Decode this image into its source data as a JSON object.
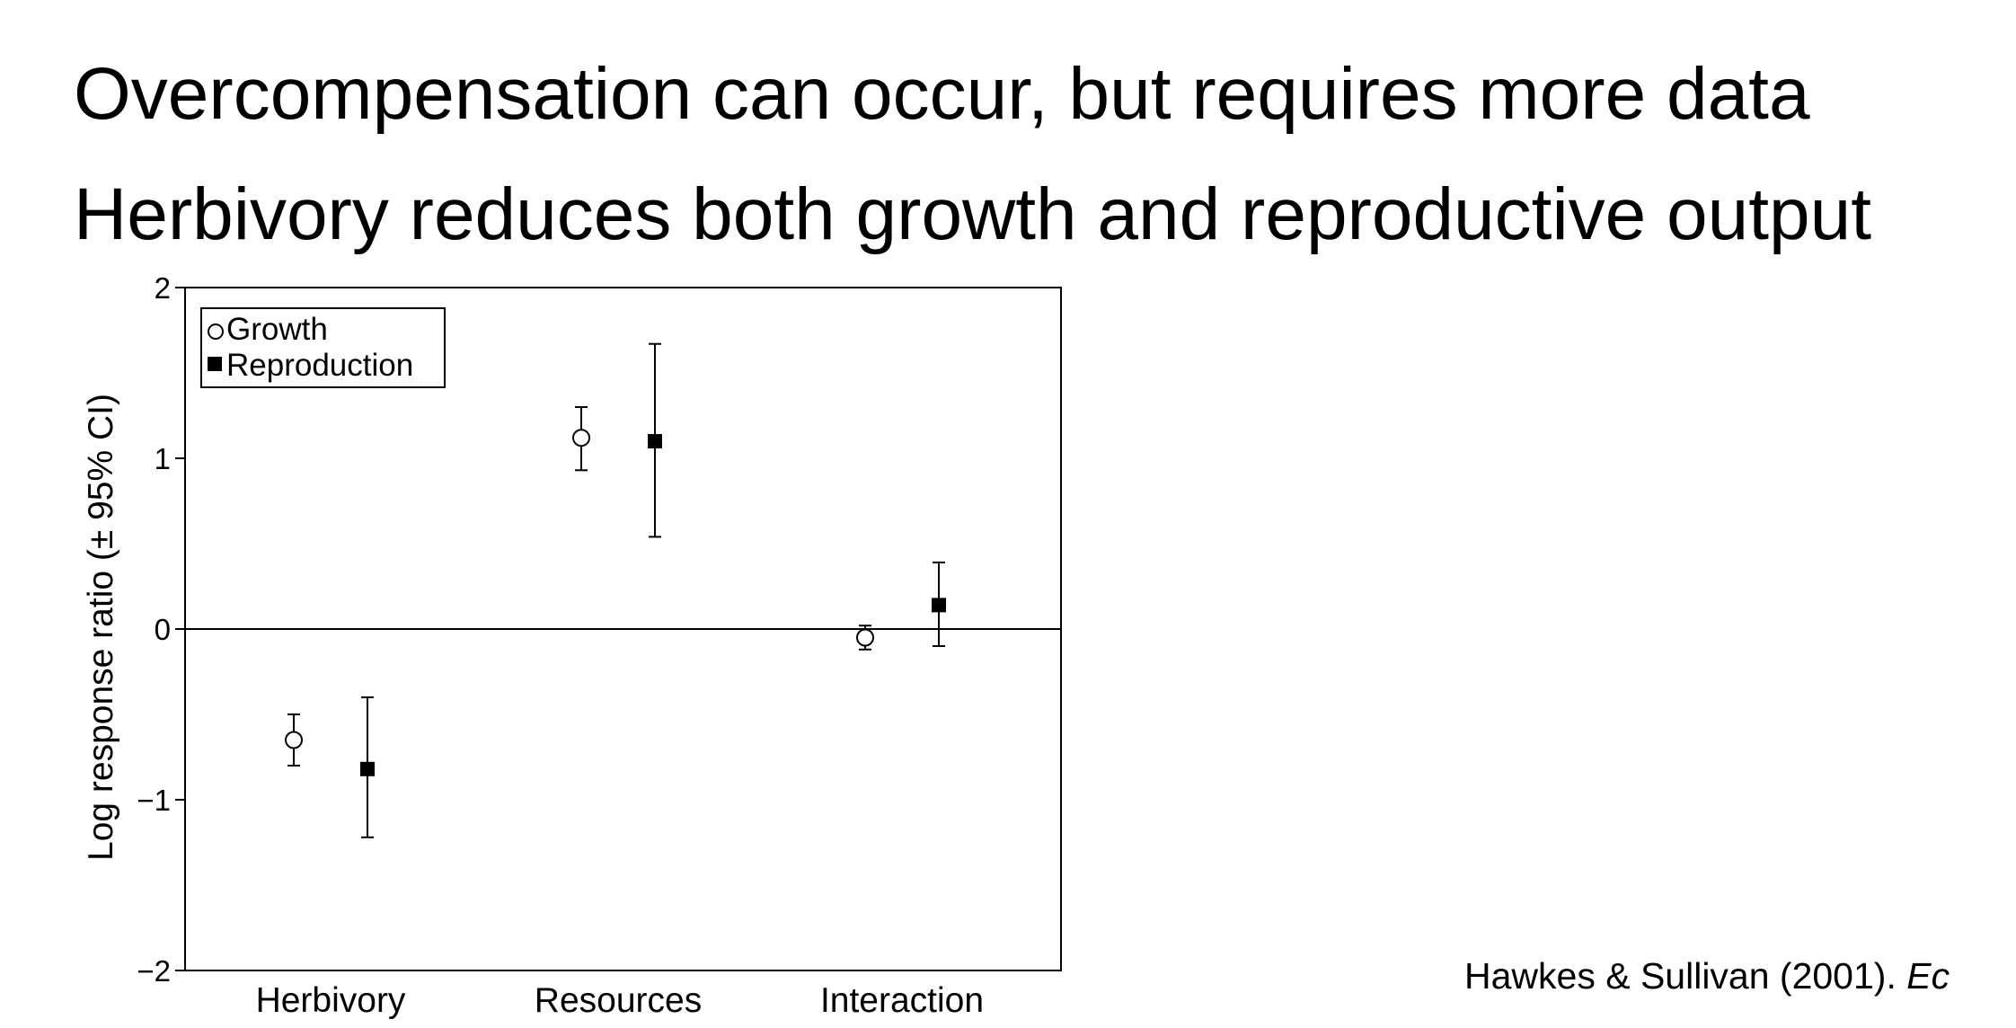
{
  "slide": {
    "line1": "Overcompensation can occur, but requires more data",
    "line2": "Herbivory reduces both growth and reproductive output",
    "citation_authors": "Hawkes & Sullivan (2001). ",
    "citation_italic": "Ec"
  },
  "chart_data": {
    "type": "scatter",
    "title": "",
    "xlabel": "",
    "ylabel": "Log response ratio (± 95% CI)",
    "categories": [
      "Herbivory",
      "Resources",
      "Interaction"
    ],
    "ylim": [
      -2,
      2
    ],
    "yticks": [
      {
        "value": 2,
        "label": "2"
      },
      {
        "value": 1,
        "label": "1"
      },
      {
        "value": 0,
        "label": "0"
      },
      {
        "value": -1,
        "label": "−1"
      },
      {
        "value": -2,
        "label": "−2"
      }
    ],
    "reference_line": 0,
    "grid": false,
    "legend": {
      "position": "top-left"
    },
    "series": [
      {
        "name": "Growth",
        "marker": "open-circle",
        "values": [
          -0.65,
          1.12,
          -0.05
        ],
        "ci_lower": [
          -0.8,
          0.93,
          -0.12
        ],
        "ci_upper": [
          -0.5,
          1.3,
          0.02
        ]
      },
      {
        "name": "Reproduction",
        "marker": "filled-square",
        "values": [
          -0.82,
          1.1,
          0.14
        ],
        "ci_lower": [
          -1.22,
          0.54,
          -0.1
        ],
        "ci_upper": [
          -0.4,
          1.67,
          0.39
        ]
      }
    ]
  }
}
